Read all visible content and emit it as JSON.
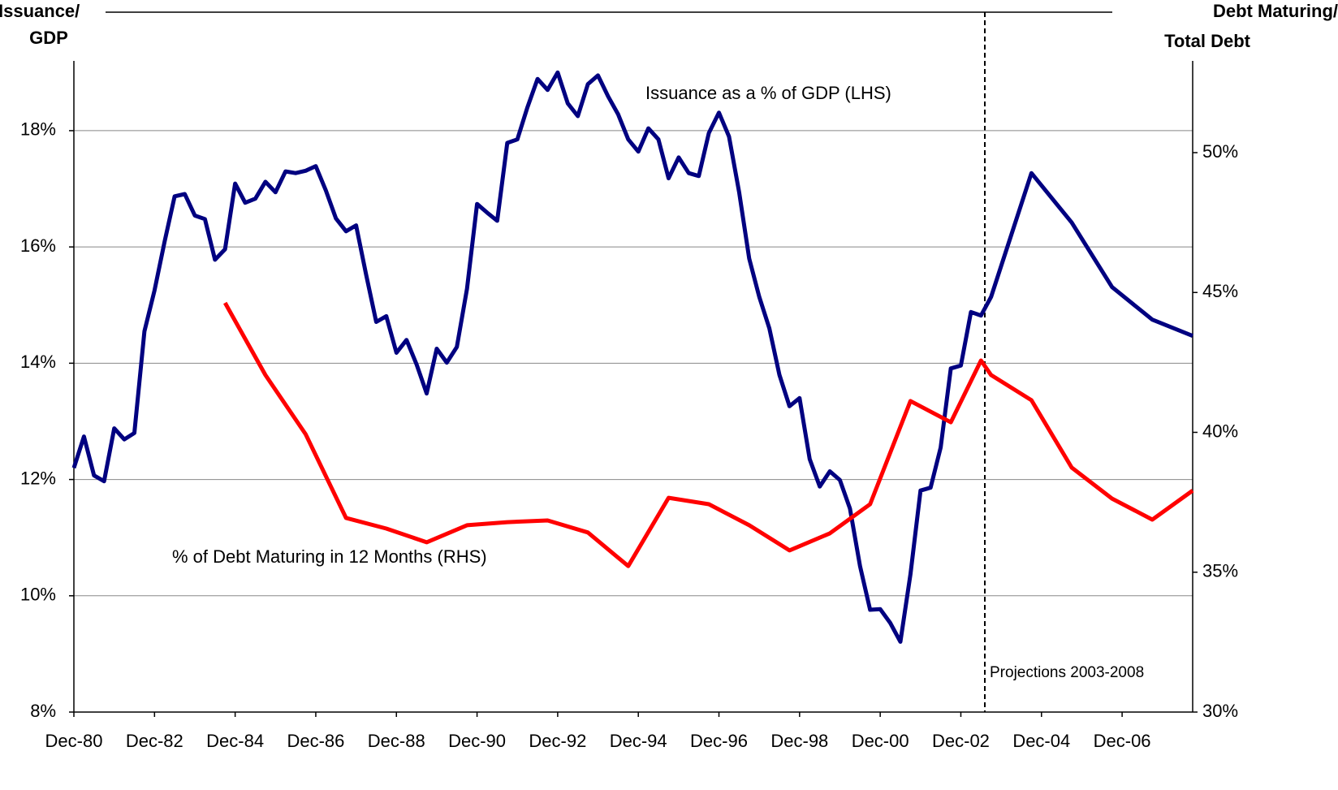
{
  "chart_data": {
    "type": "line",
    "y_title": [
      "Issuance/",
      "GDP"
    ],
    "y2_title": [
      "Debt Maturing/",
      "Total Debt"
    ],
    "annotations": [
      "Projections 2003-2008"
    ],
    "xlim": [
      1981,
      2008.75
    ],
    "xticks": [
      {
        "value": 1981,
        "label": "Dec-80"
      },
      {
        "value": 1983,
        "label": "Dec-82"
      },
      {
        "value": 1985,
        "label": "Dec-84"
      },
      {
        "value": 1987,
        "label": "Dec-86"
      },
      {
        "value": 1989,
        "label": "Dec-88"
      },
      {
        "value": 1991,
        "label": "Dec-90"
      },
      {
        "value": 1993,
        "label": "Dec-92"
      },
      {
        "value": 1995,
        "label": "Dec-94"
      },
      {
        "value": 1997,
        "label": "Dec-96"
      },
      {
        "value": 1999,
        "label": "Dec-98"
      },
      {
        "value": 2001,
        "label": "Dec-00"
      },
      {
        "value": 2003,
        "label": "Dec-02"
      },
      {
        "value": 2005,
        "label": "Dec-04"
      },
      {
        "value": 2007,
        "label": "Dec-06"
      }
    ],
    "ylim": [
      8,
      19.2
    ],
    "yticks": [
      {
        "value": 8,
        "label": "8%"
      },
      {
        "value": 10,
        "label": "10%"
      },
      {
        "value": 12,
        "label": "12%"
      },
      {
        "value": 14,
        "label": "14%"
      },
      {
        "value": 16,
        "label": "16%"
      },
      {
        "value": 18,
        "label": "18%"
      }
    ],
    "y2lim": [
      30,
      53.28
    ],
    "y2ticks": [
      {
        "value": 30,
        "label": "30%"
      },
      {
        "value": 35,
        "label": "35%"
      },
      {
        "value": 40,
        "label": "40%"
      },
      {
        "value": 45,
        "label": "45%"
      },
      {
        "value": 50,
        "label": "50%"
      }
    ],
    "grid": true,
    "series": [
      {
        "name": "Issuance as a % of GDP (LHS)",
        "color": "#000080",
        "x": [
          1981,
          1981.25,
          1981.5,
          1981.75,
          1982,
          1982.25,
          1982.5,
          1982.75,
          1983,
          1983.25,
          1983.5,
          1983.75,
          1984,
          1984.25,
          1984.5,
          1984.75,
          1985,
          1985.25,
          1985.5,
          1985.75,
          1986,
          1986.25,
          1986.5,
          1986.75,
          1987,
          1987.25,
          1987.5,
          1987.75,
          1988,
          1988.25,
          1988.5,
          1988.75,
          1989,
          1989.25,
          1989.5,
          1989.75,
          1990,
          1990.25,
          1990.5,
          1990.75,
          1991,
          1991.25,
          1991.5,
          1991.75,
          1992,
          1992.25,
          1992.5,
          1992.75,
          1993,
          1993.25,
          1993.5,
          1993.75,
          1994,
          1994.25,
          1994.5,
          1994.75,
          1995,
          1995.25,
          1995.5,
          1995.75,
          1996,
          1996.25,
          1996.5,
          1996.75,
          1997,
          1997.25,
          1997.5,
          1997.75,
          1998,
          1998.25,
          1998.5,
          1998.75,
          1999,
          1999.25,
          1999.5,
          1999.75,
          2000,
          2000.25,
          2000.5,
          2000.75,
          2001,
          2001.25,
          2001.5,
          2001.75,
          2002,
          2002.25,
          2002.5,
          2002.75,
          2003,
          2003.25,
          2003.5,
          2003.75,
          2004.75,
          2005.75,
          2006.75,
          2007.75,
          2008.75
        ],
        "values": [
          12.2,
          12.74,
          12.07,
          11.97,
          12.88,
          12.69,
          12.8,
          14.55,
          15.25,
          16.09,
          16.87,
          16.91,
          16.54,
          16.48,
          15.78,
          15.96,
          17.09,
          16.76,
          16.83,
          17.12,
          16.94,
          17.3,
          17.27,
          17.31,
          17.39,
          16.97,
          16.49,
          16.27,
          16.37,
          15.52,
          14.71,
          14.81,
          14.18,
          14.4,
          13.98,
          13.48,
          14.25,
          14.01,
          14.28,
          15.28,
          16.74,
          16.59,
          16.45,
          17.79,
          17.85,
          18.4,
          18.89,
          18.7,
          19.0,
          18.47,
          18.25,
          18.8,
          18.95,
          18.59,
          18.28,
          17.85,
          17.64,
          18.04,
          17.85,
          17.18,
          17.54,
          17.27,
          17.22,
          17.96,
          18.31,
          17.9,
          16.94,
          15.8,
          15.14,
          14.6,
          13.8,
          13.26,
          13.4,
          12.35,
          11.88,
          12.14,
          11.99,
          11.5,
          10.51,
          9.76,
          9.77,
          9.53,
          9.21,
          10.37,
          11.81,
          11.86,
          12.55,
          13.91,
          13.96,
          14.88,
          14.82,
          15.14,
          17.27,
          16.42,
          15.31,
          14.75,
          14.47
        ]
      },
      {
        "name": "% of Debt Maturing in 12 Months (RHS)",
        "color": "#ff0000",
        "axis": "y2",
        "x": [
          1984.75,
          1985.75,
          1986.75,
          1987.75,
          1988.75,
          1989.75,
          1990.75,
          1991.75,
          1992.75,
          1993.75,
          1994.75,
          1995.75,
          1996.75,
          1997.75,
          1998.75,
          1999.75,
          2000.75,
          2001.75,
          2002.75,
          2003.5,
          2003.75,
          2004.75,
          2005.75,
          2006.75,
          2007.75,
          2008.75
        ],
        "values": [
          44.63,
          42.05,
          39.93,
          36.94,
          36.56,
          36.07,
          36.68,
          36.79,
          36.85,
          36.42,
          35.22,
          37.66,
          37.43,
          36.68,
          35.78,
          36.39,
          37.43,
          41.12,
          40.36,
          42.57,
          42.05,
          41.15,
          38.74,
          37.63,
          36.88,
          37.92
        ]
      }
    ]
  }
}
